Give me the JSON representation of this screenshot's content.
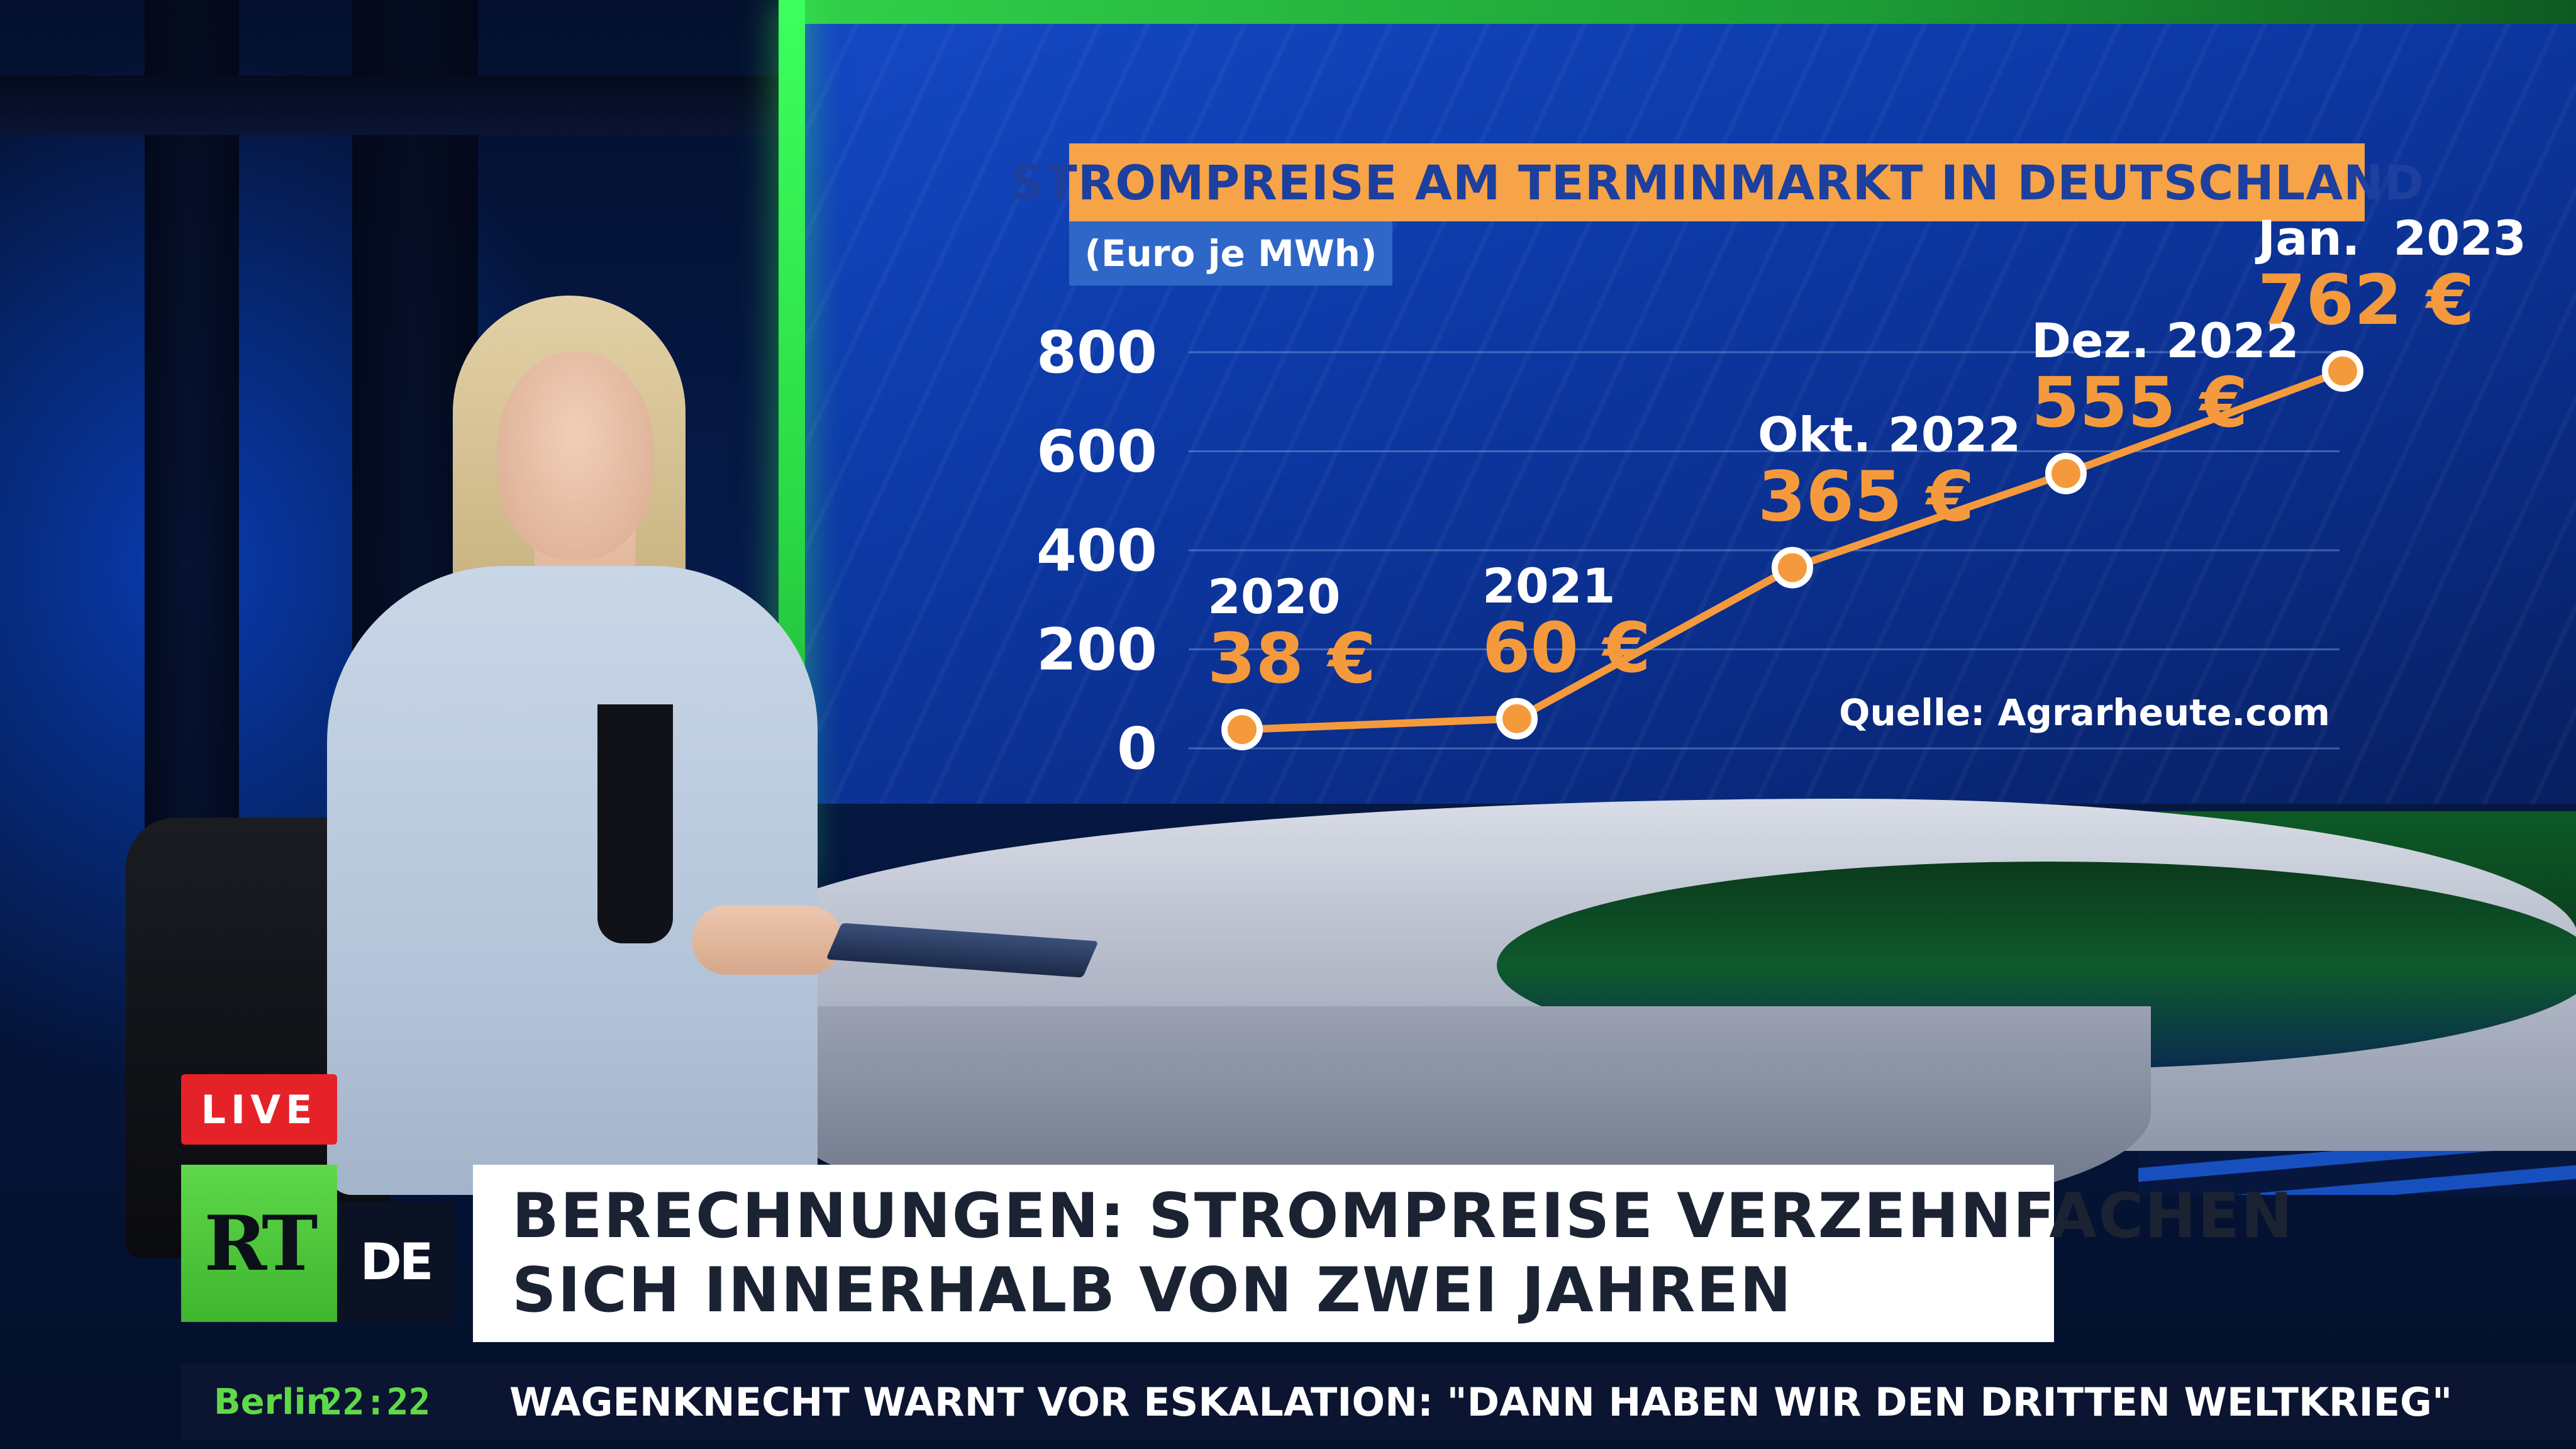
{
  "chart": {
    "title": "STROMPREISE AM TERMINMARKT IN DEUTSCHLAND",
    "subtitle": "(Euro je MWh)",
    "source": "Quelle: Agrarheute.com",
    "colors": {
      "title_bg": "#f7a347",
      "line": "#f59a3c",
      "value_text": "#f59a3c"
    }
  },
  "chart_data": {
    "type": "line",
    "title": "STROMPREISE AM TERMINMARKT IN DEUTSCHLAND",
    "ylabel": "(Euro je MWh)",
    "ylim": [
      0,
      800
    ],
    "yticks": [
      "800",
      "600",
      "400",
      "200",
      "0"
    ],
    "grid": true,
    "x": [
      "2020",
      "2021",
      "Okt. 2022",
      "Dez. 2022",
      "Jan.  2023"
    ],
    "values": [
      38,
      60,
      365,
      555,
      762
    ],
    "value_labels": [
      "38 €",
      "60 €",
      "365 €",
      "555 €",
      "762 €"
    ]
  },
  "overlay": {
    "live": "LIVE",
    "logo_rt": "RT",
    "logo_de": "DE",
    "headline_line1": "BERECHNUNGEN: STROMPREISE VERZEHNFACHEN",
    "headline_line2": "SICH INNERHALB VON ZWEI JAHREN",
    "ticker_city": "Berlin",
    "ticker_time": "22:22",
    "ticker_text": "WAGENKNECHT WARNT VOR ESKALATION: \"DANN HABEN WIR DEN DRITTEN WELTKRIEG\"",
    "colors": {
      "live_bg": "#e52228",
      "brand_green": "#5fd84a"
    }
  }
}
